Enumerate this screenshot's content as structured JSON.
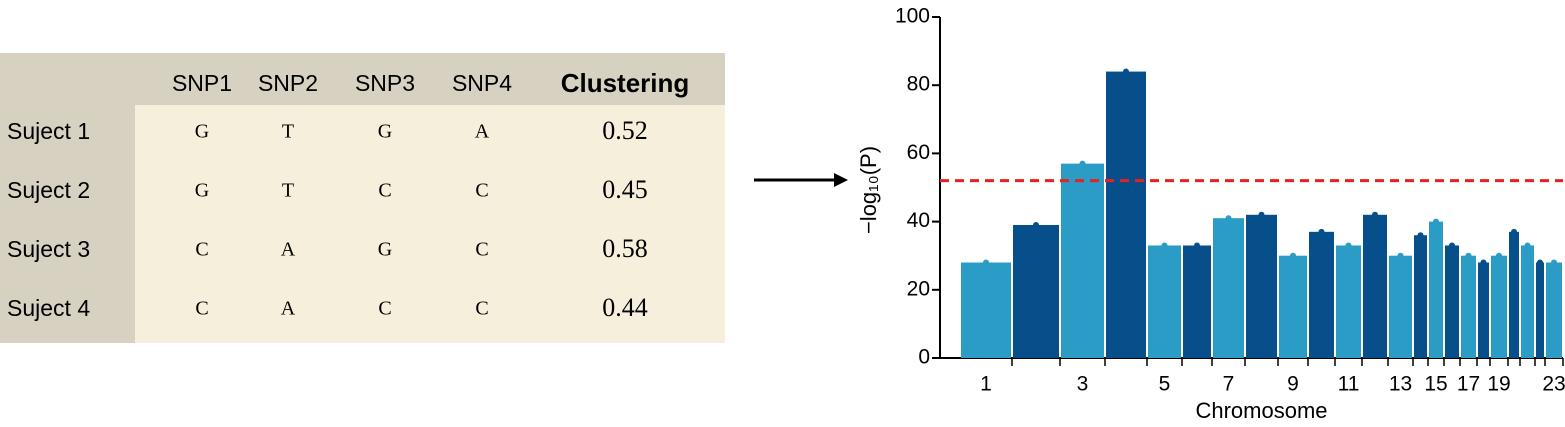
{
  "table": {
    "columns": [
      "SNP1",
      "SNP2",
      "SNP3",
      "SNP4",
      "Clustering"
    ],
    "rows": [
      [
        "Suject 1",
        "G",
        "T",
        "G",
        "A",
        "0.52"
      ],
      [
        "Suject 2",
        "G",
        "T",
        "C",
        "C",
        "0.45"
      ],
      [
        "Suject 3",
        "C",
        "A",
        "G",
        "C",
        "0.58"
      ],
      [
        "Suject 4",
        "C",
        "A",
        "C",
        "C",
        "0.44"
      ]
    ]
  },
  "chart_data": {
    "type": "manhattan",
    "ylabel": "−log₁₀(P)",
    "xlabel": "Chromosome",
    "categories": [
      1,
      null,
      3,
      null,
      5,
      null,
      7,
      null,
      9,
      null,
      11,
      null,
      13,
      null,
      15,
      null,
      17,
      null,
      19,
      null,
      null,
      null,
      23
    ],
    "values": [
      28,
      39,
      57,
      84,
      33,
      33,
      41,
      42,
      30,
      37,
      33,
      42,
      30,
      36,
      40,
      33,
      30,
      28,
      30,
      37,
      33,
      28,
      28
    ],
    "colors": [
      "#2a9cc5",
      "#074f8a"
    ],
    "threshold": 52,
    "threshold_color": "#e8201f",
    "ylim": [
      0,
      100
    ],
    "yticks": [
      0,
      20,
      40,
      60,
      80,
      100
    ]
  }
}
